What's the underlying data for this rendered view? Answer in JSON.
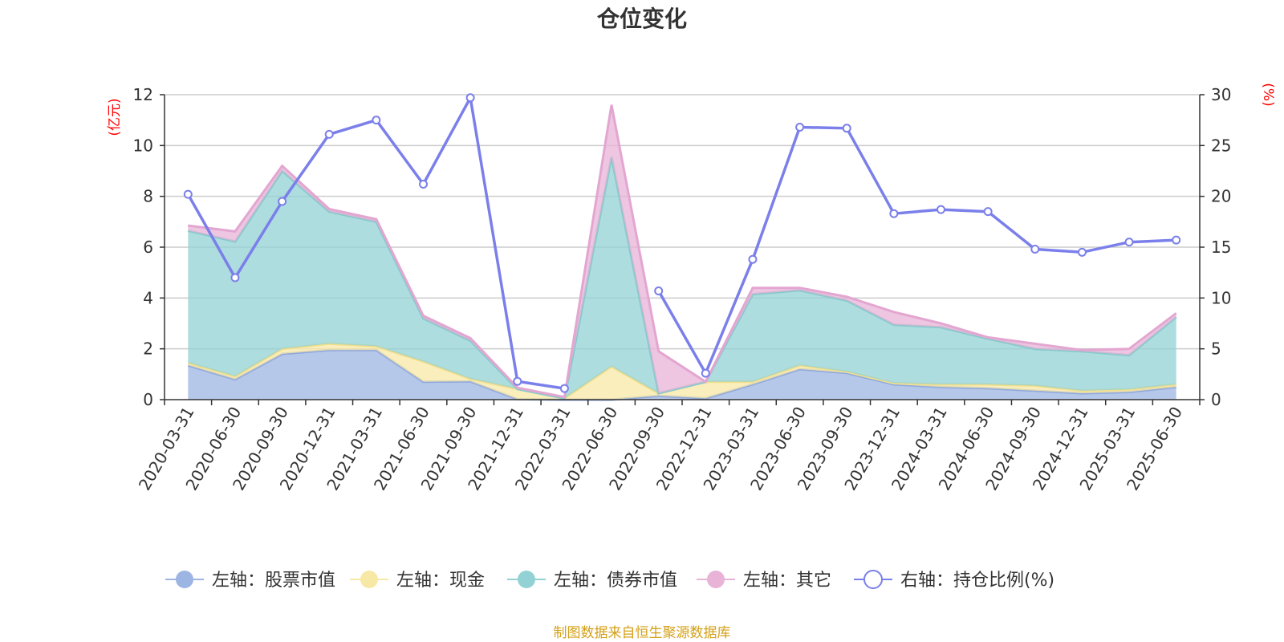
{
  "title": "仓位变化",
  "source": "制图数据来自恒生聚源数据库",
  "left_axis_unit": "(亿元)",
  "right_axis_unit": "(%)",
  "legend": [
    {
      "label": "左轴：股票市值",
      "color": "#9db5e3",
      "symbol": "filled-circle"
    },
    {
      "label": "左轴：现金",
      "color": "#f8e8a6",
      "symbol": "filled-circle"
    },
    {
      "label": "左轴：债券市值",
      "color": "#93d2d4",
      "symbol": "filled-circle"
    },
    {
      "label": "左轴：其它",
      "color": "#e8b3d7",
      "symbol": "filled-circle"
    },
    {
      "label": "右轴：持仓比例(%)",
      "color": "#7b7fea",
      "symbol": "hollow-circle"
    }
  ],
  "chart_data": {
    "type": "area",
    "stacked": true,
    "categories": [
      "2020-03-31",
      "2020-06-30",
      "2020-09-30",
      "2020-12-31",
      "2021-03-31",
      "2021-06-30",
      "2021-09-30",
      "2021-12-31",
      "2022-03-31",
      "2022-06-30",
      "2022-09-30",
      "2022-12-31",
      "2023-03-31",
      "2023-06-30",
      "2023-09-30",
      "2023-12-31",
      "2024-03-31",
      "2024-06-30",
      "2024-09-30",
      "2024-12-31",
      "2025-03-31",
      "2025-06-30"
    ],
    "left_axis": {
      "unit": "(亿元)",
      "ylim": [
        0,
        12
      ],
      "ticks": [
        0,
        2,
        4,
        6,
        8,
        10,
        12
      ]
    },
    "right_axis": {
      "unit": "(%)",
      "ylim": [
        0,
        30
      ],
      "ticks": [
        0,
        5,
        10,
        15,
        20,
        25,
        30
      ]
    },
    "grid": true,
    "legend_position": "bottom",
    "series": [
      {
        "name": "左轴：股票市值",
        "axis": "left",
        "color": "#9db5e3",
        "values": [
          1.35,
          0.8,
          1.8,
          1.95,
          1.95,
          0.7,
          0.72,
          0.02,
          0.0,
          0.0,
          0.15,
          0.05,
          0.6,
          1.2,
          1.05,
          0.6,
          0.5,
          0.45,
          0.35,
          0.25,
          0.3,
          0.5
        ]
      },
      {
        "name": "左轴：现金",
        "axis": "left",
        "color": "#f8e8a6",
        "values": [
          0.1,
          0.12,
          0.2,
          0.25,
          0.15,
          0.8,
          0.1,
          0.4,
          0.05,
          1.3,
          0.1,
          0.65,
          0.1,
          0.15,
          0.05,
          0.05,
          0.1,
          0.15,
          0.2,
          0.1,
          0.1,
          0.1
        ]
      },
      {
        "name": "左轴：债券市值",
        "axis": "left",
        "color": "#93d2d4",
        "values": [
          5.2,
          5.3,
          7.0,
          5.2,
          4.9,
          1.7,
          1.5,
          0.0,
          0.0,
          8.25,
          0.0,
          0.0,
          3.45,
          2.95,
          2.8,
          2.3,
          2.25,
          1.8,
          1.45,
          1.55,
          1.35,
          2.65
        ]
      },
      {
        "name": "左轴：其它",
        "axis": "left",
        "color": "#e8b3d7",
        "values": [
          0.2,
          0.4,
          0.2,
          0.1,
          0.1,
          0.1,
          0.1,
          0.05,
          0.05,
          2.05,
          1.65,
          0.0,
          0.25,
          0.1,
          0.15,
          0.5,
          0.15,
          0.05,
          0.2,
          0.05,
          0.25,
          0.15
        ]
      },
      {
        "name": "右轴：持仓比例(%)",
        "axis": "right",
        "color": "#7b7fea",
        "type": "line",
        "values": [
          20.2,
          12.0,
          19.5,
          26.1,
          27.5,
          21.2,
          29.7,
          1.8,
          1.1,
          null,
          10.7,
          2.6,
          13.8,
          26.8,
          26.7,
          18.3,
          18.7,
          18.5,
          14.8,
          14.5,
          15.5,
          15.7
        ]
      }
    ]
  }
}
